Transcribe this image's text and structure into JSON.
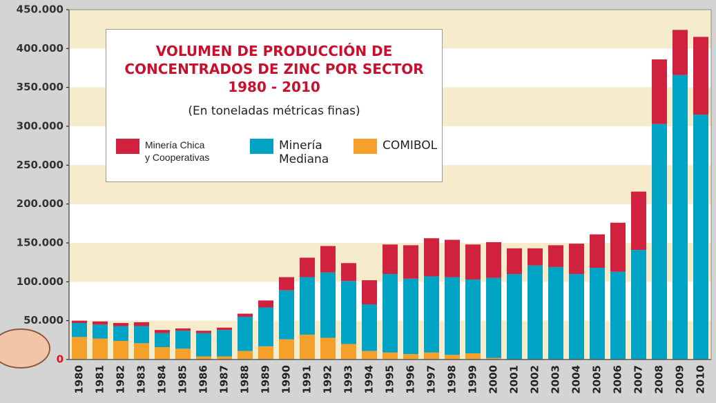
{
  "chart_data": {
    "type": "stacked_bar",
    "title": "VOLUMEN DE PRODUCCIÓN DE\nCONCENTRADOS DE ZINC POR SECTOR\n1980 - 2010",
    "subtitle": "(En toneladas métricas finas)",
    "categories": [
      "1980",
      "1981",
      "1982",
      "1983",
      "1984",
      "1985",
      "1986",
      "1987",
      "1988",
      "1989",
      "1990",
      "1991",
      "1992",
      "1993",
      "1994",
      "1995",
      "1996",
      "1997",
      "1998",
      "1999",
      "2000",
      "2001",
      "2002",
      "2003",
      "2004",
      "2005",
      "2006",
      "2007",
      "2008",
      "2009",
      "2010"
    ],
    "series": [
      {
        "name": "COMIBOL",
        "color": "#f5a02a",
        "values": [
          29000,
          27000,
          24000,
          21000,
          16000,
          14000,
          4000,
          4000,
          11000,
          17000,
          26000,
          32000,
          28000,
          20000,
          11000,
          9000,
          7000,
          9000,
          6000,
          8000,
          2000,
          0,
          0,
          0,
          0,
          0,
          0,
          0,
          0,
          0,
          0
        ]
      },
      {
        "name": "Minería\nMediana",
        "color": "#00a3c4",
        "values": [
          18000,
          18000,
          19000,
          22000,
          18000,
          23000,
          30000,
          34000,
          44000,
          50000,
          63000,
          74000,
          84000,
          81000,
          60000,
          101000,
          97000,
          98000,
          100000,
          95000,
          103000,
          110000,
          121000,
          119000,
          110000,
          118000,
          113000,
          141000,
          303000,
          366000,
          315000
        ]
      },
      {
        "name": "Minería Chica\ny Cooperativas",
        "color": "#d0223f",
        "values": [
          3000,
          4000,
          4000,
          5000,
          4000,
          3000,
          3000,
          3000,
          4000,
          9000,
          17000,
          25000,
          34000,
          23000,
          31000,
          38000,
          43000,
          49000,
          48000,
          45000,
          46000,
          33000,
          22000,
          28000,
          39000,
          43000,
          63000,
          75000,
          83000,
          58000,
          100000
        ]
      }
    ],
    "ylim": [
      0,
      450000
    ],
    "yticks": [
      0,
      {
        "value": 50000,
        "label": "50.000"
      },
      {
        "value": 100000,
        "label": "100.000"
      },
      {
        "value": 150000,
        "label": "150.000"
      },
      {
        "value": 200000,
        "label": "200.000"
      },
      {
        "value": 250000,
        "label": "250.000"
      },
      {
        "value": 300000,
        "label": "300.000"
      },
      {
        "value": 350000,
        "label": "350.000"
      },
      {
        "value": 400000,
        "label": "400.000"
      },
      {
        "value": 450000,
        "label": "450.000"
      }
    ],
    "band_colors": [
      "#f6ebcb",
      "#ffffff"
    ]
  }
}
